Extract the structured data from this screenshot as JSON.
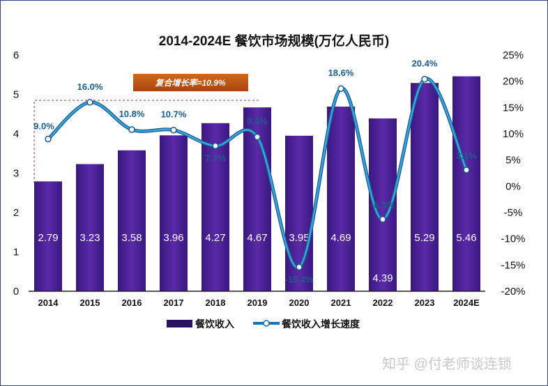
{
  "chart_data": {
    "type": "bar+line",
    "title": "2014-2024E 餐饮市场规模(万亿人民币)",
    "categories": [
      "2014",
      "2015",
      "2016",
      "2017",
      "2018",
      "2019",
      "2020",
      "2021",
      "2022",
      "2023",
      "2024E"
    ],
    "series": [
      {
        "name": "餐饮收入",
        "type": "bar",
        "axis": "left",
        "color": "#4a2196",
        "values": [
          2.79,
          3.23,
          3.58,
          3.96,
          4.27,
          4.67,
          3.95,
          4.69,
          4.39,
          5.29,
          5.46
        ],
        "labels": [
          "2.79",
          "3.23",
          "3.58",
          "3.96",
          "4.27",
          "4.67",
          "3.95",
          "4.69",
          "4.39",
          "5.29",
          "5.46"
        ]
      },
      {
        "name": "餐饮收入增长速度",
        "type": "line",
        "axis": "right",
        "color": "#1c6fa8",
        "values": [
          9.0,
          16.0,
          10.8,
          10.7,
          7.7,
          9.4,
          -15.4,
          18.6,
          -6.3,
          20.4,
          3.1
        ],
        "labels": [
          "9.0%",
          "16.0%",
          "10.8%",
          "10.7%",
          "7.7%",
          "9.4%",
          "-15.4%",
          "18.6%",
          "-6.3%",
          "20.4%",
          "3.1%"
        ]
      }
    ],
    "left_axis": {
      "range": [
        0,
        6
      ],
      "ticks": [
        "0",
        "1",
        "2",
        "3",
        "4",
        "5",
        "6"
      ]
    },
    "right_axis": {
      "range": [
        -20,
        25
      ],
      "ticks": [
        "-20%",
        "-15%",
        "-10%",
        "-5%",
        "0%",
        "5%",
        "10%",
        "15%",
        "20%",
        "25%"
      ]
    },
    "annotation": "复合增长率=10.9%",
    "legend_position": "bottom",
    "grid": false
  },
  "watermark": "知乎 @付老师谈连锁"
}
